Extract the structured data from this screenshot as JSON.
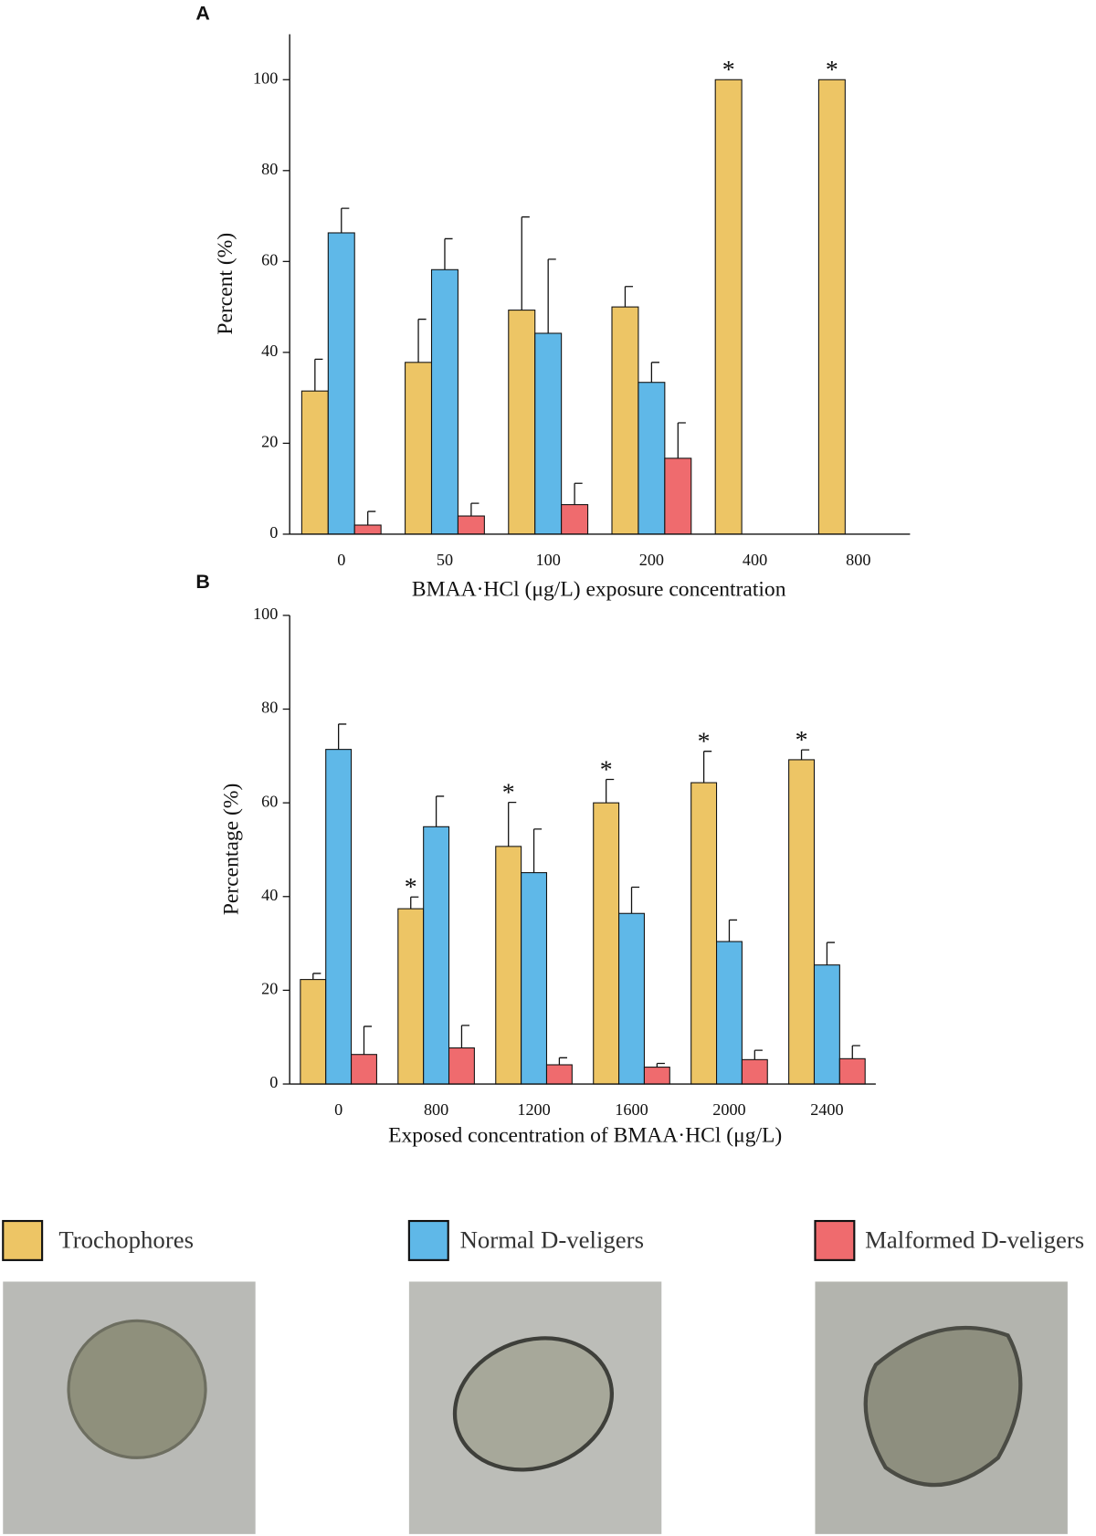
{
  "chart_data": [
    {
      "type": "bar",
      "panel": "A",
      "ylabel": "Percent (%)",
      "xlabel": "BMAA·HCl (μg/L) exposure concentration",
      "categories": [
        "0",
        "50",
        "100",
        "200",
        "400",
        "800"
      ],
      "ylim": [
        0,
        110
      ],
      "yticks": [
        0,
        20,
        40,
        60,
        80,
        100
      ],
      "significance_marker": "*",
      "series": [
        {
          "name": "Trochophores",
          "color": "#edc565",
          "values": [
            31.5,
            37.8,
            49.3,
            50,
            100,
            100
          ],
          "errors": [
            7,
            9.5,
            20.5,
            4.5,
            null,
            null
          ],
          "significant": [
            false,
            false,
            false,
            false,
            true,
            true
          ]
        },
        {
          "name": "Normal D-veligers",
          "color": "#5fb8e8",
          "values": [
            66.3,
            58.2,
            44.2,
            33.4,
            0,
            0
          ],
          "errors": [
            5.4,
            6.8,
            16.3,
            4.4,
            null,
            null
          ]
        },
        {
          "name": "Malformed D-veligers",
          "color": "#ef6b6e",
          "values": [
            2,
            4,
            6.5,
            16.7,
            0,
            0
          ],
          "errors": [
            3,
            2.8,
            4.7,
            7.8,
            null,
            null
          ]
        }
      ]
    },
    {
      "type": "bar",
      "panel": "B",
      "ylabel": "Percentage (%)",
      "xlabel": "Exposed concentration of BMAA·HCl (μg/L)",
      "categories": [
        "0",
        "800",
        "1200",
        "1600",
        "2000",
        "2400"
      ],
      "ylim": [
        0,
        100
      ],
      "yticks": [
        0,
        20,
        40,
        60,
        80,
        100
      ],
      "significance_marker": "*",
      "series": [
        {
          "color": "#edc565",
          "values": [
            22.3,
            37.4,
            50.7,
            60,
            64.3,
            69.2
          ],
          "errors": [
            1.3,
            2.5,
            9.4,
            5,
            6.7,
            2.1
          ],
          "significant": [
            false,
            true,
            true,
            true,
            true,
            true
          ]
        },
        {
          "color": "#5fb8e8",
          "values": [
            71.4,
            54.9,
            45.1,
            36.4,
            30.4,
            25.4
          ],
          "errors": [
            5.4,
            6.5,
            9.3,
            5.6,
            4.6,
            4.8
          ]
        },
        {
          "color": "#ef6b6e",
          "values": [
            6.3,
            7.7,
            4.1,
            3.6,
            5.2,
            5.4
          ],
          "errors": [
            6,
            4.8,
            1.5,
            0.8,
            2,
            2.8
          ]
        }
      ]
    }
  ]
}
